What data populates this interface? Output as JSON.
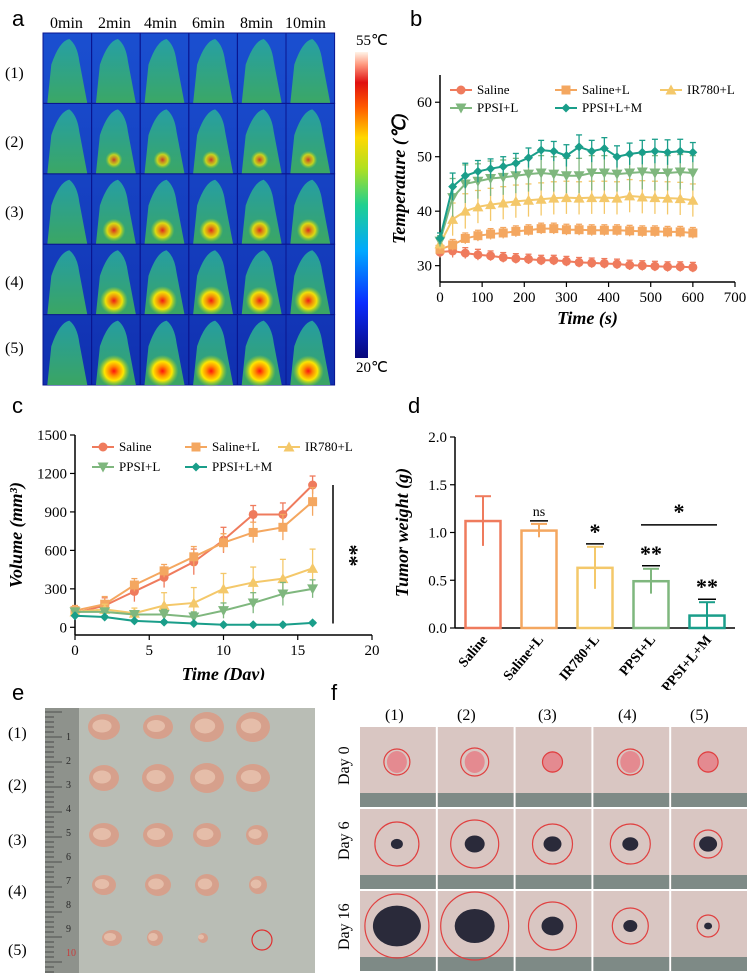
{
  "panel_labels": {
    "a": "a",
    "b": "b",
    "c": "c",
    "d": "d",
    "e": "e",
    "f": "f"
  },
  "panel_a": {
    "time_labels": [
      "0min",
      "2min",
      "4min",
      "6min",
      "8min",
      "10min"
    ],
    "row_labels": [
      "(1)",
      "(2)",
      "(3)",
      "(4)",
      "(5)"
    ],
    "colorbar_max": "55℃",
    "colorbar_min": "20℃"
  },
  "panel_e": {
    "row_labels": [
      "(1)",
      "(2)",
      "(3)",
      "(4)",
      "(5)"
    ],
    "ruler_numbers": [
      "1",
      "2",
      "3",
      "4",
      "5",
      "6",
      "7",
      "8",
      "9",
      "10"
    ]
  },
  "panel_f": {
    "col_labels": [
      "(1)",
      "(2)",
      "(3)",
      "(4)",
      "(5)"
    ],
    "row_labels": [
      "Day 0",
      "Day 6",
      "Day 16"
    ]
  },
  "chart_data": [
    {
      "id": "b",
      "type": "line",
      "xlabel": "Time (s)",
      "ylabel": "Temperature (℃)",
      "xlim": [
        0,
        700
      ],
      "ylim": [
        27,
        65
      ],
      "xticks": [
        0,
        100,
        200,
        300,
        400,
        500,
        600,
        700
      ],
      "yticks": [
        30,
        40,
        50,
        60
      ],
      "x": [
        0,
        30,
        60,
        90,
        120,
        150,
        180,
        210,
        240,
        270,
        300,
        330,
        360,
        390,
        420,
        450,
        480,
        510,
        540,
        570,
        600
      ],
      "series": [
        {
          "name": "Saline",
          "color": "#ef7b5d",
          "values": [
            32.5,
            32.7,
            32.3,
            32.0,
            31.8,
            31.5,
            31.3,
            31.2,
            31.0,
            31.0,
            30.8,
            30.6,
            30.5,
            30.4,
            30.3,
            30.1,
            30.0,
            29.9,
            29.8,
            29.8,
            29.7
          ],
          "err": [
            1.0,
            1.2,
            1.0,
            1.0,
            0.9,
            0.9,
            0.9,
            0.9,
            0.9,
            0.9,
            0.9,
            0.9,
            0.9,
            0.9,
            0.9,
            0.9,
            0.9,
            0.9,
            0.9,
            0.9,
            0.9
          ]
        },
        {
          "name": "Saline+L",
          "color": "#f4a760",
          "values": [
            33.0,
            33.8,
            35.0,
            35.5,
            35.8,
            36.0,
            36.3,
            36.5,
            36.8,
            36.8,
            36.6,
            36.6,
            36.5,
            36.5,
            36.5,
            36.4,
            36.3,
            36.3,
            36.2,
            36.2,
            36.0
          ],
          "err": [
            0.8,
            1.0,
            1.0,
            1.0,
            1.0,
            1.0,
            1.0,
            1.0,
            1.0,
            1.0,
            1.0,
            1.0,
            1.0,
            1.0,
            1.0,
            1.0,
            1.0,
            1.0,
            1.0,
            1.0,
            1.0
          ]
        },
        {
          "name": "IR780+L",
          "color": "#f4c86a",
          "values": [
            34.0,
            38.5,
            40.0,
            40.8,
            41.2,
            41.5,
            41.8,
            42.0,
            42.2,
            42.4,
            42.5,
            42.4,
            42.5,
            42.5,
            42.4,
            42.8,
            42.6,
            42.5,
            42.4,
            42.3,
            42.0
          ],
          "err": [
            1.0,
            3.0,
            3.2,
            3.0,
            3.0,
            3.0,
            3.0,
            3.0,
            3.0,
            3.0,
            3.0,
            3.0,
            3.0,
            3.0,
            3.0,
            3.0,
            3.0,
            3.0,
            3.0,
            3.0,
            3.0
          ]
        },
        {
          "name": "PPSI+L",
          "color": "#7fb77e",
          "values": [
            34.5,
            42.5,
            45.0,
            45.5,
            46.0,
            46.2,
            46.5,
            46.8,
            47.0,
            46.8,
            46.5,
            46.5,
            47.0,
            47.0,
            46.8,
            47.0,
            47.2,
            47.0,
            47.0,
            47.2,
            47.0
          ],
          "err": [
            1.0,
            3.5,
            3.5,
            3.2,
            3.2,
            3.2,
            3.2,
            3.2,
            3.2,
            3.2,
            3.2,
            3.2,
            3.2,
            3.2,
            3.2,
            3.2,
            3.2,
            3.2,
            3.2,
            3.2,
            3.2
          ]
        },
        {
          "name": "PPSI+L+M",
          "color": "#1a9e8a",
          "values": [
            35.0,
            44.5,
            46.5,
            47.3,
            47.8,
            48.2,
            48.8,
            49.8,
            51.2,
            51.0,
            50.2,
            51.8,
            51.0,
            51.5,
            50.0,
            50.5,
            50.8,
            51.0,
            50.8,
            51.0,
            50.8
          ],
          "err": [
            1.0,
            2.5,
            2.3,
            2.0,
            1.8,
            1.8,
            1.8,
            1.8,
            1.8,
            1.8,
            2.0,
            2.2,
            2.0,
            2.0,
            2.0,
            2.0,
            2.2,
            2.2,
            2.3,
            2.2,
            1.8
          ]
        }
      ]
    },
    {
      "id": "c",
      "type": "line",
      "xlabel": "Time (Day)",
      "ylabel": "Volume (mm³)",
      "xlim": [
        0,
        20
      ],
      "ylim": [
        -60,
        1500
      ],
      "xticks": [
        0,
        5,
        10,
        15,
        20
      ],
      "yticks": [
        0,
        300,
        600,
        900,
        1200,
        1500
      ],
      "x": [
        0,
        2,
        4,
        6,
        8,
        10,
        12,
        14,
        16
      ],
      "significance": "**",
      "series": [
        {
          "name": "Saline",
          "color": "#ef7b5d",
          "marker": "circle",
          "values": [
            110,
            170,
            280,
            390,
            510,
            680,
            880,
            880,
            1110
          ],
          "err": [
            40,
            60,
            80,
            80,
            100,
            100,
            70,
            90,
            70
          ]
        },
        {
          "name": "Saline+L",
          "color": "#f4a760",
          "marker": "square",
          "values": [
            130,
            180,
            330,
            440,
            550,
            660,
            740,
            780,
            980
          ],
          "err": [
            40,
            60,
            50,
            50,
            80,
            70,
            80,
            100,
            110
          ]
        },
        {
          "name": "IR780+L",
          "color": "#f4c86a",
          "marker": "triangle",
          "values": [
            120,
            140,
            110,
            170,
            190,
            300,
            350,
            380,
            460
          ],
          "err": [
            30,
            40,
            40,
            100,
            120,
            120,
            120,
            150,
            150
          ]
        },
        {
          "name": "PPSI+L",
          "color": "#7fb77e",
          "marker": "triangle-down",
          "values": [
            120,
            120,
            100,
            100,
            80,
            130,
            190,
            260,
            300
          ],
          "err": [
            30,
            30,
            30,
            40,
            40,
            60,
            80,
            90,
            70
          ]
        },
        {
          "name": "PPSI+L+M",
          "color": "#1a9e8a",
          "marker": "diamond",
          "values": [
            90,
            80,
            50,
            40,
            30,
            20,
            20,
            20,
            35
          ],
          "err": [
            10,
            10,
            10,
            10,
            10,
            8,
            8,
            8,
            10
          ]
        }
      ]
    },
    {
      "id": "d",
      "type": "bar",
      "ylabel": "Tumor weight (g)",
      "ylim": [
        0,
        2.0
      ],
      "yticks": [
        "0.0",
        "0.5",
        "1.0",
        "1.5",
        "2.0"
      ],
      "categories": [
        "Saline",
        "Saline+L",
        "IR780+L",
        "PPSI+L",
        "PPSI+L+M"
      ],
      "values": [
        1.12,
        1.02,
        0.63,
        0.49,
        0.13
      ],
      "err": [
        0.26,
        0.07,
        0.22,
        0.13,
        0.14
      ],
      "colors": [
        "#ef7b5d",
        "#f4a760",
        "#f4c86a",
        "#7fb77e",
        "#1a9e8a"
      ],
      "annotations": [
        "",
        "ns",
        "*",
        "**",
        "**"
      ],
      "bracket_annotation": "*"
    }
  ]
}
